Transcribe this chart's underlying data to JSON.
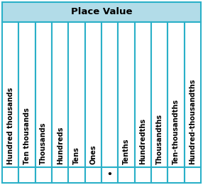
{
  "title": "Place Value",
  "columns": [
    "Hundred thousands",
    "Ten thousands",
    "Thousands",
    "Hundreds",
    "Tens",
    "Ones",
    "",
    "Tenths",
    "Hundredths",
    "Thousandths",
    "Ten-thousandths",
    "Hundred-thousandths"
  ],
  "decimal_col_index": 6,
  "decimal_symbol": "•",
  "header_bg": "#b2dce8",
  "cell_bg": "#ffffff",
  "border_color": "#2ab0c8",
  "title_fontsize": 9.5,
  "label_fontsize": 7.0,
  "title_color": "#000000",
  "label_color": "#000000",
  "border_lw": 1.5
}
